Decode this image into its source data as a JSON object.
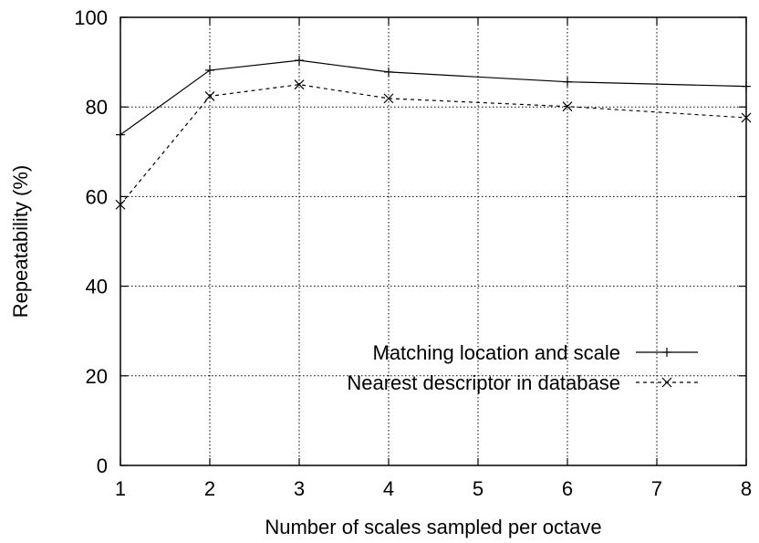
{
  "chart_data": {
    "type": "line",
    "xlabel": "Number of scales sampled per octave",
    "ylabel": "Repeatability (%)",
    "xlim": [
      1,
      8
    ],
    "ylim": [
      0,
      100
    ],
    "xticks": [
      1,
      2,
      3,
      4,
      5,
      6,
      7,
      8
    ],
    "yticks": [
      0,
      20,
      40,
      60,
      80,
      100
    ],
    "grid": true,
    "legend_position": "right",
    "x": [
      1,
      2,
      3,
      4,
      6,
      8
    ],
    "series": [
      {
        "name": "Matching location and scale",
        "values": [
          73.8,
          88.2,
          90.4,
          87.8,
          85.6,
          84.6
        ],
        "line_style": "solid",
        "marker": "plus"
      },
      {
        "name": "Nearest descriptor in database",
        "values": [
          58.2,
          82.4,
          85.0,
          81.9,
          80.1,
          77.6
        ],
        "line_style": "dashed",
        "marker": "cross"
      }
    ]
  }
}
